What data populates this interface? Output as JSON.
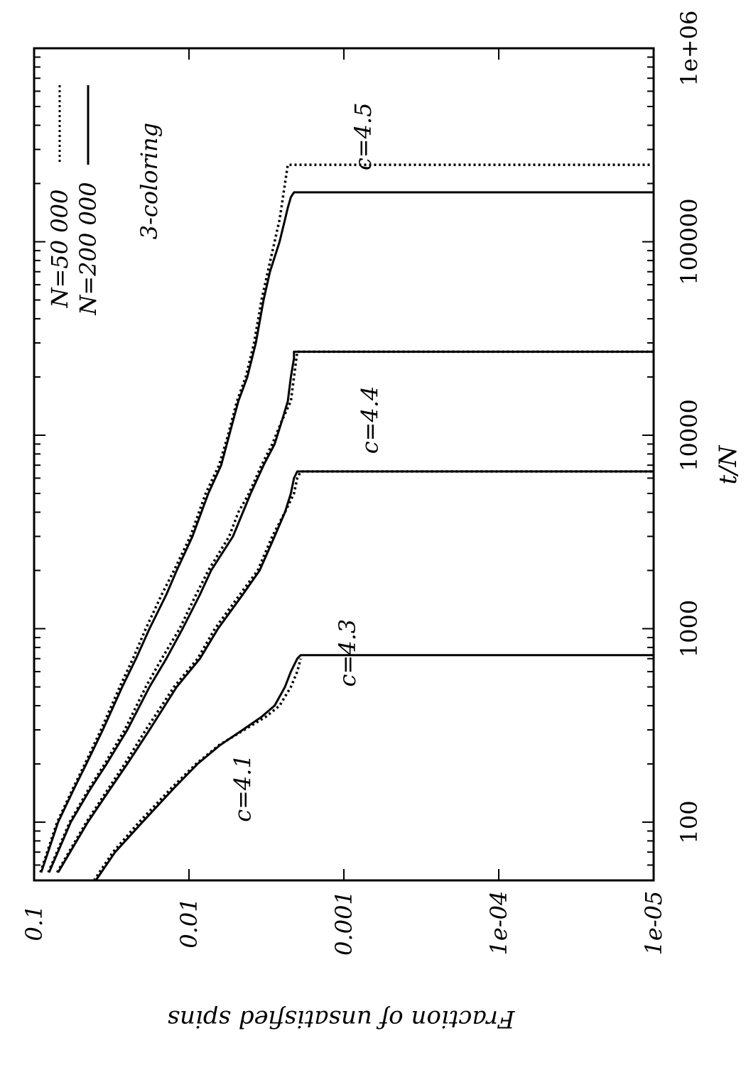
{
  "chart_data": {
    "type": "line",
    "title": "",
    "xlabel": "t/N",
    "ylabel": "Fraction of unsatisfied spins",
    "xscale": "log",
    "yscale": "log",
    "xlim": [
      50,
      1000000
    ],
    "ylim": [
      1e-05,
      0.1
    ],
    "x_ticks": [
      {
        "value": 100,
        "label": "100"
      },
      {
        "value": 1000,
        "label": "1000"
      },
      {
        "value": 10000,
        "label": "10000"
      },
      {
        "value": 100000,
        "label": "100000"
      },
      {
        "value": 1000000,
        "label": "1e+06"
      }
    ],
    "y_ticks": [
      {
        "value": 0.1,
        "label": "0.1"
      },
      {
        "value": 0.01,
        "label": "0.01"
      },
      {
        "value": 0.001,
        "label": "0.001"
      },
      {
        "value": 0.0001,
        "label": "1e-04"
      },
      {
        "value": 1e-05,
        "label": "1e-05"
      }
    ],
    "legend_position": "top-right",
    "annotation_main": "3-coloring",
    "grid": false,
    "rotated": "90deg counter-clockwise (landscape figure)",
    "legend": [
      {
        "label": "N=50 000",
        "style": "dotted"
      },
      {
        "label": "N=200 000",
        "style": "solid"
      }
    ],
    "curve_labels": [
      {
        "label": "c=4.1"
      },
      {
        "label": "c=4.3"
      },
      {
        "label": "c=4.4"
      },
      {
        "label": "c=4.5"
      }
    ],
    "series": [
      {
        "name": "N=200 000",
        "c": "4.1",
        "style": "solid",
        "points": [
          [
            50,
            0.04
          ],
          [
            70,
            0.03
          ],
          [
            100,
            0.02
          ],
          [
            150,
            0.0125
          ],
          [
            200,
            0.0088
          ],
          [
            250,
            0.0063
          ],
          [
            300,
            0.0045
          ],
          [
            350,
            0.0034
          ],
          [
            400,
            0.0028
          ],
          [
            500,
            0.0024
          ],
          [
            600,
            0.0022
          ],
          [
            700,
            0.002
          ],
          [
            730,
            0.0019
          ],
          [
            730,
            1e-05
          ]
        ]
      },
      {
        "name": "N=50 000",
        "c": "4.1",
        "style": "dotted",
        "points": [
          [
            50,
            0.041
          ],
          [
            70,
            0.031
          ],
          [
            100,
            0.021
          ],
          [
            150,
            0.013
          ],
          [
            200,
            0.009
          ],
          [
            250,
            0.0064
          ],
          [
            300,
            0.0044
          ],
          [
            350,
            0.0032
          ],
          [
            400,
            0.0026
          ],
          [
            500,
            0.0022
          ],
          [
            600,
            0.002
          ],
          [
            700,
            0.0019
          ]
        ]
      },
      {
        "name": "N=200 000",
        "c": "4.3",
        "style": "solid",
        "points": [
          [
            55,
            0.07
          ],
          [
            100,
            0.045
          ],
          [
            150,
            0.032
          ],
          [
            200,
            0.025
          ],
          [
            300,
            0.018
          ],
          [
            500,
            0.012
          ],
          [
            700,
            0.0085
          ],
          [
            1000,
            0.0065
          ],
          [
            1500,
            0.0045
          ],
          [
            2000,
            0.0035
          ],
          [
            3000,
            0.0028
          ],
          [
            4000,
            0.0024
          ],
          [
            5000,
            0.0022
          ],
          [
            6000,
            0.0021
          ],
          [
            6500,
            0.002
          ],
          [
            6500,
            1e-05
          ]
        ]
      },
      {
        "name": "N=50 000",
        "c": "4.3",
        "style": "dotted",
        "points": [
          [
            55,
            0.071
          ],
          [
            100,
            0.046
          ],
          [
            150,
            0.033
          ],
          [
            200,
            0.026
          ],
          [
            300,
            0.019
          ],
          [
            500,
            0.0125
          ],
          [
            700,
            0.0088
          ],
          [
            1000,
            0.0068
          ],
          [
            1500,
            0.0047
          ],
          [
            2000,
            0.0036
          ],
          [
            3000,
            0.0029
          ],
          [
            4000,
            0.0024
          ],
          [
            5000,
            0.0021
          ],
          [
            6000,
            0.002
          ],
          [
            6500,
            0.0019
          ],
          [
            6500,
            1e-05
          ]
        ]
      },
      {
        "name": "N=200 000",
        "c": "4.4",
        "style": "solid",
        "points": [
          [
            55,
            0.08
          ],
          [
            100,
            0.058
          ],
          [
            150,
            0.043
          ],
          [
            200,
            0.034
          ],
          [
            300,
            0.025
          ],
          [
            500,
            0.018
          ],
          [
            700,
            0.014
          ],
          [
            1000,
            0.011
          ],
          [
            1500,
            0.0085
          ],
          [
            2000,
            0.0072
          ],
          [
            3000,
            0.0052
          ],
          [
            5000,
            0.004
          ],
          [
            7000,
            0.0033
          ],
          [
            9000,
            0.0028
          ],
          [
            12000,
            0.0025
          ],
          [
            15000,
            0.0023
          ],
          [
            20000,
            0.0022
          ],
          [
            25000,
            0.0021
          ],
          [
            27000,
            0.0021
          ],
          [
            27000,
            1e-05
          ]
        ]
      },
      {
        "name": "N=50 000",
        "c": "4.4",
        "style": "dotted",
        "points": [
          [
            55,
            0.081
          ],
          [
            100,
            0.059
          ],
          [
            150,
            0.044
          ],
          [
            200,
            0.035
          ],
          [
            300,
            0.026
          ],
          [
            500,
            0.019
          ],
          [
            700,
            0.015
          ],
          [
            1000,
            0.0115
          ],
          [
            1500,
            0.009
          ],
          [
            2000,
            0.0075
          ],
          [
            3000,
            0.0055
          ],
          [
            4000,
            0.0048
          ],
          [
            5000,
            0.0041
          ],
          [
            7000,
            0.0034
          ],
          [
            9000,
            0.0029
          ],
          [
            12000,
            0.0025
          ],
          [
            15000,
            0.0022
          ],
          [
            20000,
            0.0021
          ],
          [
            27000,
            0.002
          ],
          [
            27000,
            1e-05
          ]
        ]
      },
      {
        "name": "N=200 000",
        "c": "4.5",
        "style": "solid",
        "points": [
          [
            55,
            0.09
          ],
          [
            100,
            0.07
          ],
          [
            150,
            0.055
          ],
          [
            200,
            0.046
          ],
          [
            300,
            0.036
          ],
          [
            500,
            0.027
          ],
          [
            700,
            0.022
          ],
          [
            1000,
            0.018
          ],
          [
            1500,
            0.014
          ],
          [
            2000,
            0.012
          ],
          [
            3000,
            0.0095
          ],
          [
            5000,
            0.0075
          ],
          [
            7000,
            0.0062
          ],
          [
            10000,
            0.0055
          ],
          [
            15000,
            0.0048
          ],
          [
            20000,
            0.0042
          ],
          [
            30000,
            0.0037
          ],
          [
            50000,
            0.0033
          ],
          [
            70000,
            0.003
          ],
          [
            100000,
            0.0026
          ],
          [
            130000,
            0.0024
          ],
          [
            150000,
            0.0023
          ],
          [
            170000,
            0.0022
          ],
          [
            180000,
            0.0021
          ],
          [
            180000,
            1e-05
          ]
        ]
      },
      {
        "name": "N=50 000",
        "c": "4.5",
        "style": "dotted",
        "points": [
          [
            55,
            0.091
          ],
          [
            100,
            0.071
          ],
          [
            150,
            0.056
          ],
          [
            200,
            0.047
          ],
          [
            300,
            0.037
          ],
          [
            500,
            0.028
          ],
          [
            700,
            0.023
          ],
          [
            1000,
            0.019
          ],
          [
            1500,
            0.015
          ],
          [
            2000,
            0.0125
          ],
          [
            3000,
            0.0098
          ],
          [
            5000,
            0.0078
          ],
          [
            7000,
            0.0064
          ],
          [
            10000,
            0.0056
          ],
          [
            15000,
            0.0049
          ],
          [
            20000,
            0.0043
          ],
          [
            30000,
            0.0038
          ],
          [
            50000,
            0.0034
          ],
          [
            70000,
            0.0031
          ],
          [
            100000,
            0.0028
          ],
          [
            130000,
            0.0026
          ],
          [
            160000,
            0.0025
          ],
          [
            200000,
            0.0024
          ],
          [
            250000,
            0.0023
          ],
          [
            250000,
            1e-05
          ]
        ]
      }
    ]
  }
}
